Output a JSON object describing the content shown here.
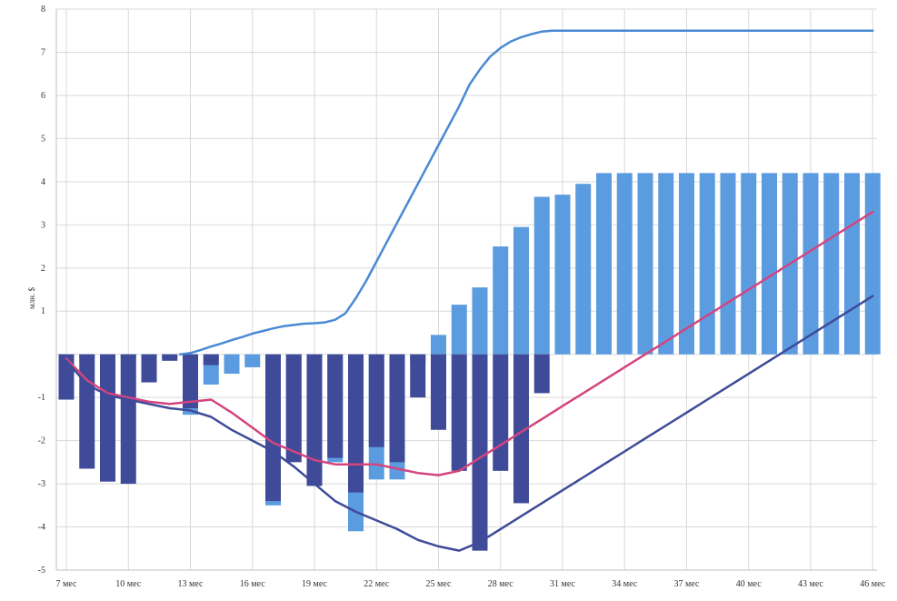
{
  "chart_data": {
    "type": "bar",
    "ylabel": "млн. $",
    "ylim": [
      -5,
      8
    ],
    "yticks": [
      -5,
      -4,
      -3,
      -2,
      -1,
      1,
      2,
      3,
      4,
      5,
      6,
      7,
      8
    ],
    "grid": true,
    "x_tick_labels": [
      "7 мес",
      "10 мес",
      "13 мес",
      "16 мес",
      "19 мес",
      "22 мес",
      "25 мес",
      "28 мес",
      "31 мес",
      "34 мес",
      "37 мес",
      "40 мес",
      "43 мес",
      "46 мес"
    ],
    "months": [
      7,
      8,
      9,
      10,
      11,
      12,
      13,
      14,
      15,
      16,
      17,
      18,
      19,
      20,
      21,
      22,
      23,
      24,
      25,
      26,
      27,
      28,
      29,
      30,
      31,
      32,
      33,
      34,
      35,
      36,
      37,
      38,
      39,
      40,
      41,
      42,
      43,
      44,
      45,
      46
    ],
    "bar_series": [
      {
        "color": "#5b9be0",
        "values": [
          -0.1,
          -0.1,
          -0.1,
          -0.1,
          -0.1,
          -0.1,
          -1.4,
          -0.7,
          -0.45,
          -0.3,
          -3.5,
          -2.4,
          -3.0,
          -2.5,
          -4.1,
          -2.9,
          -2.9,
          -0.2,
          0.45,
          1.15,
          1.55,
          2.5,
          2.95,
          3.65,
          3.7,
          3.95,
          4.2,
          4.2,
          4.2,
          4.2,
          4.2,
          4.2,
          4.2,
          4.2,
          4.2,
          4.2,
          4.2,
          4.2,
          4.2,
          4.2
        ]
      },
      {
        "color": "#3f4a99",
        "values": [
          -1.05,
          -2.65,
          -2.95,
          -3.0,
          -0.65,
          -0.15,
          -1.25,
          -0.25,
          0,
          0,
          -3.4,
          -2.5,
          -3.05,
          -2.4,
          -3.2,
          -2.15,
          -2.5,
          -1.0,
          -1.75,
          -2.7,
          -4.55,
          -2.7,
          -3.45,
          -0.9,
          0,
          0,
          0,
          0,
          0,
          0,
          0,
          0,
          0,
          0,
          0,
          0,
          0,
          0,
          0,
          0
        ]
      }
    ],
    "line_series": [
      {
        "color": "#4a8ad4",
        "points": [
          [
            12.5,
            0
          ],
          [
            13,
            0.03
          ],
          [
            13.5,
            0.1
          ],
          [
            14,
            0.18
          ],
          [
            14.5,
            0.25
          ],
          [
            15,
            0.33
          ],
          [
            15.5,
            0.4
          ],
          [
            16,
            0.48
          ],
          [
            16.5,
            0.54
          ],
          [
            17,
            0.6
          ],
          [
            17.5,
            0.65
          ],
          [
            18,
            0.68
          ],
          [
            18.5,
            0.71
          ],
          [
            19,
            0.72
          ],
          [
            19.5,
            0.74
          ],
          [
            20,
            0.8
          ],
          [
            20.5,
            0.95
          ],
          [
            21,
            1.3
          ],
          [
            21.5,
            1.7
          ],
          [
            22,
            2.15
          ],
          [
            22.5,
            2.6
          ],
          [
            23,
            3.05
          ],
          [
            23.5,
            3.5
          ],
          [
            24,
            3.95
          ],
          [
            24.5,
            4.4
          ],
          [
            25,
            4.85
          ],
          [
            25.5,
            5.3
          ],
          [
            26,
            5.75
          ],
          [
            26.5,
            6.25
          ],
          [
            27,
            6.6
          ],
          [
            27.5,
            6.9
          ],
          [
            28,
            7.1
          ],
          [
            28.5,
            7.25
          ],
          [
            29,
            7.35
          ],
          [
            29.5,
            7.42
          ],
          [
            30,
            7.48
          ],
          [
            30.5,
            7.5
          ],
          [
            31,
            7.5
          ],
          [
            38,
            7.5
          ],
          [
            46,
            7.5
          ]
        ]
      },
      {
        "color": "#d4447e",
        "points": [
          [
            7,
            -0.1
          ],
          [
            8,
            -0.6
          ],
          [
            9,
            -0.9
          ],
          [
            10,
            -1.0
          ],
          [
            11,
            -1.1
          ],
          [
            12,
            -1.15
          ],
          [
            13,
            -1.1
          ],
          [
            14,
            -1.05
          ],
          [
            15,
            -1.35
          ],
          [
            16,
            -1.7
          ],
          [
            17,
            -2.05
          ],
          [
            18,
            -2.25
          ],
          [
            19,
            -2.45
          ],
          [
            20,
            -2.55
          ],
          [
            21,
            -2.55
          ],
          [
            22,
            -2.55
          ],
          [
            23,
            -2.65
          ],
          [
            24,
            -2.75
          ],
          [
            25,
            -2.8
          ],
          [
            26,
            -2.7
          ],
          [
            27,
            -2.4
          ],
          [
            28,
            -2.1
          ],
          [
            29,
            -1.8
          ],
          [
            30,
            -1.5
          ],
          [
            31,
            -1.2
          ],
          [
            32,
            -0.9
          ],
          [
            33,
            -0.6
          ],
          [
            34,
            -0.3
          ],
          [
            35,
            0
          ],
          [
            36,
            0.3
          ],
          [
            37,
            0.6
          ],
          [
            38,
            0.9
          ],
          [
            39,
            1.2
          ],
          [
            40,
            1.5
          ],
          [
            41,
            1.8
          ],
          [
            42,
            2.1
          ],
          [
            43,
            2.4
          ],
          [
            44,
            2.7
          ],
          [
            45,
            3.0
          ],
          [
            46,
            3.3
          ]
        ]
      },
      {
        "color": "#3f4a99",
        "points": [
          [
            7,
            -0.15
          ],
          [
            8,
            -0.7
          ],
          [
            9,
            -0.95
          ],
          [
            10,
            -1.05
          ],
          [
            11,
            -1.15
          ],
          [
            12,
            -1.25
          ],
          [
            13,
            -1.3
          ],
          [
            14,
            -1.45
          ],
          [
            15,
            -1.75
          ],
          [
            16,
            -2.0
          ],
          [
            17,
            -2.25
          ],
          [
            18,
            -2.6
          ],
          [
            19,
            -3.0
          ],
          [
            20,
            -3.4
          ],
          [
            21,
            -3.65
          ],
          [
            22,
            -3.85
          ],
          [
            23,
            -4.05
          ],
          [
            24,
            -4.3
          ],
          [
            25,
            -4.45
          ],
          [
            26,
            -4.55
          ],
          [
            27,
            -4.35
          ],
          [
            28,
            -4.05
          ],
          [
            29,
            -3.75
          ],
          [
            30,
            -3.45
          ],
          [
            31,
            -3.15
          ],
          [
            32,
            -2.85
          ],
          [
            33,
            -2.55
          ],
          [
            34,
            -2.25
          ],
          [
            35,
            -1.95
          ],
          [
            36,
            -1.65
          ],
          [
            37,
            -1.35
          ],
          [
            38,
            -1.05
          ],
          [
            39,
            -0.75
          ],
          [
            40,
            -0.45
          ],
          [
            41,
            -0.15
          ],
          [
            42,
            0.15
          ],
          [
            43,
            0.45
          ],
          [
            44,
            0.75
          ],
          [
            45,
            1.05
          ],
          [
            46,
            1.35
          ]
        ]
      }
    ]
  }
}
